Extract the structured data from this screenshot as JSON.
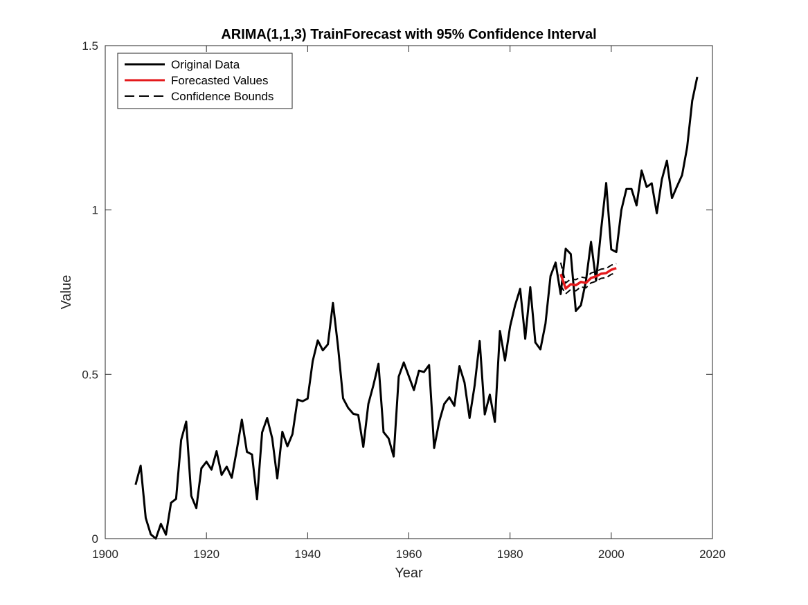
{
  "chart_data": {
    "type": "line",
    "title": "ARIMA(1,1,3) TrainForecast with 95% Confidence Interval",
    "xlabel": "Year",
    "ylabel": "Value",
    "xlim": [
      1900,
      2020
    ],
    "ylim": [
      0,
      1.5
    ],
    "xticks": [
      1900,
      1920,
      1940,
      1960,
      1980,
      2000,
      2020
    ],
    "yticks": [
      0,
      0.5,
      1,
      1.5
    ],
    "xtick_labels": [
      "1900",
      "1920",
      "1940",
      "1960",
      "1980",
      "2000",
      "2020"
    ],
    "ytick_labels": [
      "0",
      "0.5",
      "1",
      "1.5"
    ],
    "grid": false,
    "legend_position": "top-left",
    "series": [
      {
        "name": "Original Data",
        "style": "solid",
        "color": "#000000",
        "x": [
          1906,
          1907,
          1908,
          1909,
          1910,
          1911,
          1912,
          1913,
          1914,
          1915,
          1916,
          1917,
          1918,
          1919,
          1920,
          1921,
          1922,
          1923,
          1924,
          1925,
          1926,
          1927,
          1928,
          1929,
          1930,
          1931,
          1932,
          1933,
          1934,
          1935,
          1936,
          1937,
          1938,
          1939,
          1940,
          1941,
          1942,
          1943,
          1944,
          1945,
          1946,
          1947,
          1948,
          1949,
          1950,
          1951,
          1952,
          1953,
          1954,
          1955,
          1956,
          1957,
          1958,
          1959,
          1960,
          1961,
          1962,
          1963,
          1964,
          1965,
          1966,
          1967,
          1968,
          1969,
          1970,
          1971,
          1972,
          1973,
          1974,
          1975,
          1976,
          1977,
          1978,
          1979,
          1980,
          1981,
          1982,
          1983,
          1984,
          1985,
          1986,
          1987,
          1988,
          1989,
          1990,
          1991,
          1992,
          1993,
          1994,
          1995,
          1996,
          1997,
          1998,
          1999,
          2000,
          2001,
          2002,
          2003,
          2004,
          2005,
          2006,
          2007,
          2008,
          2009,
          2010,
          2011,
          2012,
          2013,
          2014,
          2015,
          2016,
          2017
        ],
        "y": [
          0.164,
          0.222,
          0.063,
          0.013,
          0.0,
          0.045,
          0.012,
          0.109,
          0.121,
          0.3,
          0.356,
          0.13,
          0.093,
          0.214,
          0.234,
          0.21,
          0.266,
          0.194,
          0.219,
          0.185,
          0.27,
          0.362,
          0.264,
          0.256,
          0.12,
          0.323,
          0.367,
          0.305,
          0.183,
          0.325,
          0.281,
          0.318,
          0.423,
          0.418,
          0.426,
          0.54,
          0.603,
          0.573,
          0.591,
          0.717,
          0.585,
          0.427,
          0.398,
          0.38,
          0.376,
          0.279,
          0.41,
          0.467,
          0.532,
          0.324,
          0.305,
          0.25,
          0.493,
          0.536,
          0.494,
          0.452,
          0.511,
          0.507,
          0.528,
          0.276,
          0.356,
          0.41,
          0.43,
          0.404,
          0.525,
          0.475,
          0.367,
          0.466,
          0.601,
          0.378,
          0.438,
          0.355,
          0.632,
          0.542,
          0.645,
          0.71,
          0.76,
          0.608,
          0.765,
          0.597,
          0.576,
          0.654,
          0.799,
          0.84,
          0.744,
          0.882,
          0.866,
          0.693,
          0.71,
          0.784,
          0.903,
          0.785,
          0.94,
          1.082,
          0.88,
          0.872,
          1.0,
          1.064,
          1.064,
          1.014,
          1.12,
          1.07,
          1.081,
          0.99,
          1.093,
          1.15,
          1.036,
          1.072,
          1.106,
          1.191,
          1.332,
          1.405
        ]
      },
      {
        "name": "Forecasted Values",
        "style": "solid",
        "color": "#e41a1c",
        "x": [
          1990,
          1991,
          1992,
          1993,
          1994,
          1995,
          1996,
          1997,
          1998,
          1999,
          2000,
          2001
        ],
        "y": [
          0.805,
          0.761,
          0.774,
          0.771,
          0.781,
          0.778,
          0.793,
          0.798,
          0.806,
          0.808,
          0.818,
          0.823
        ]
      },
      {
        "name": "Confidence Bounds",
        "style": "dashed",
        "color": "#000000",
        "x": [
          1990,
          1991,
          1992,
          1993,
          1994,
          1995,
          1996,
          1997,
          1998,
          1999,
          2000,
          2001
        ],
        "y_upper": [
          0.84,
          0.778,
          0.79,
          0.788,
          0.796,
          0.793,
          0.808,
          0.813,
          0.82,
          0.822,
          0.832,
          0.837
        ],
        "y_lower": [
          0.77,
          0.745,
          0.758,
          0.754,
          0.766,
          0.763,
          0.778,
          0.783,
          0.792,
          0.794,
          0.804,
          0.809
        ]
      }
    ]
  }
}
